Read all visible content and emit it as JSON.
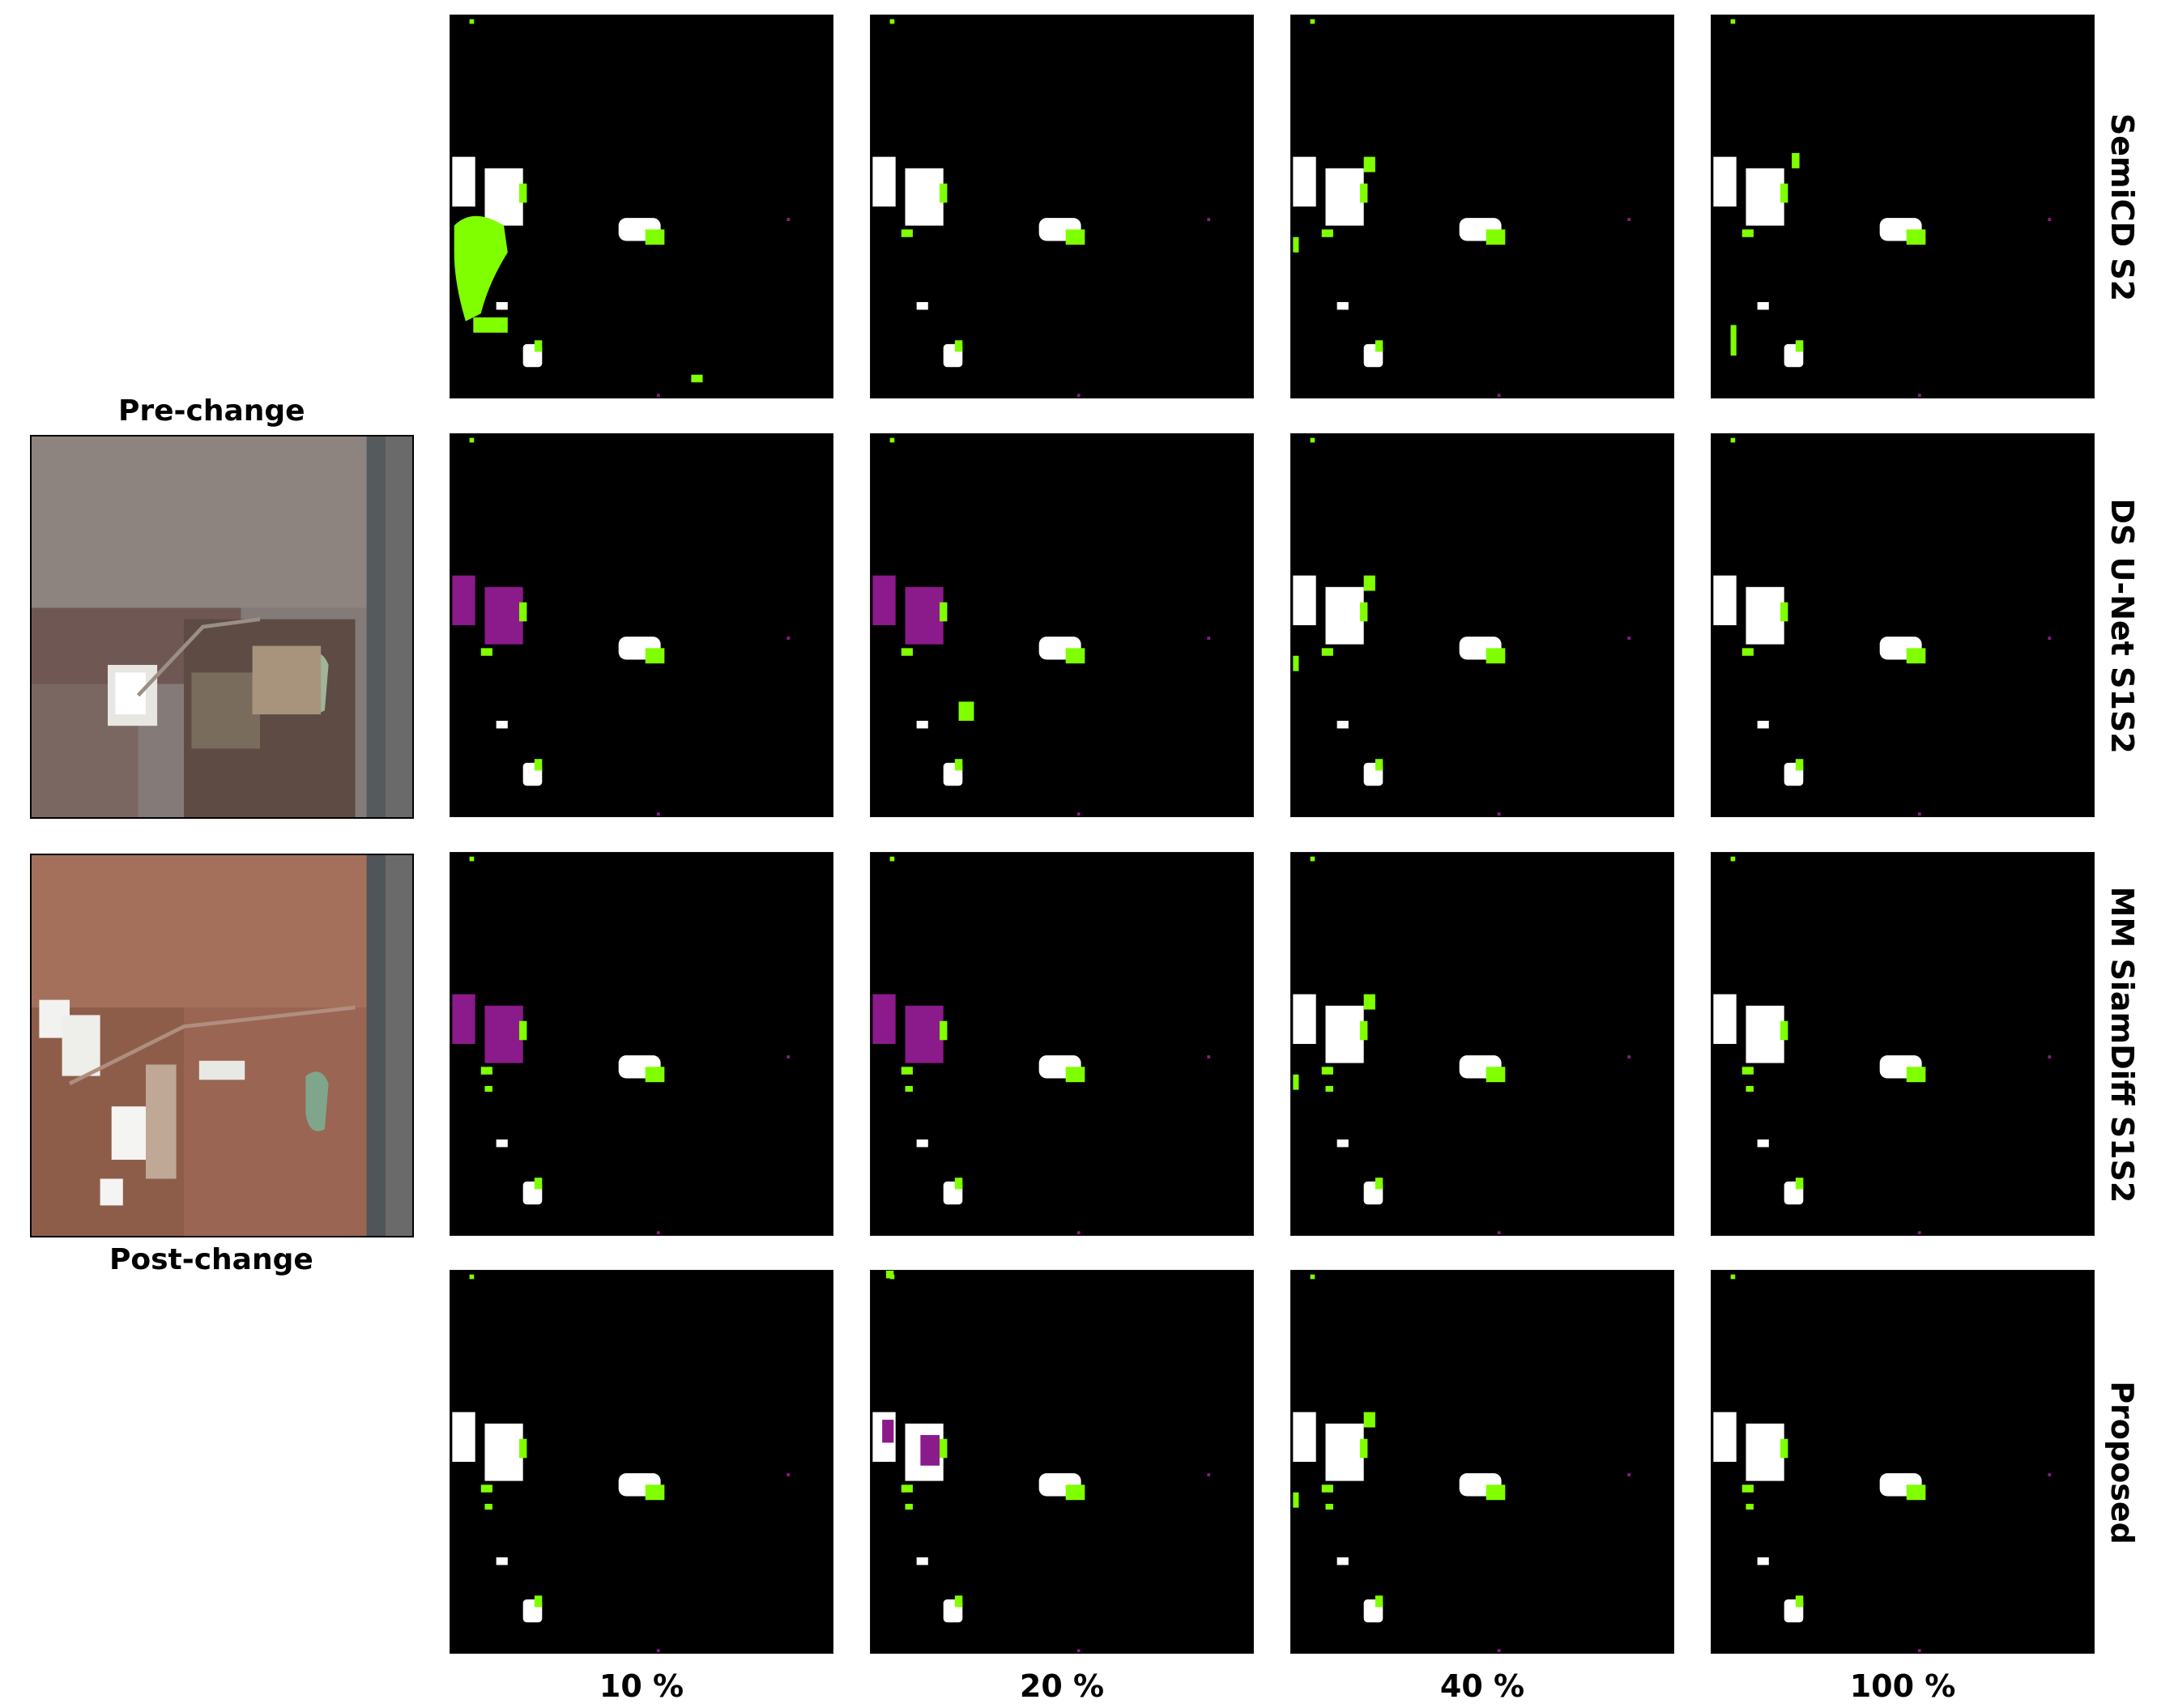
{
  "images": {
    "pre_change_label": "Pre-change",
    "post_change_label": "Post-change"
  },
  "row_labels": [
    "SemiCD S2",
    "DS U-Net S1S2",
    "MM SiamDiff S1S2",
    "Proposed"
  ],
  "col_labels": [
    "10 %",
    "20 %",
    "40 %",
    "100 %"
  ],
  "colors": {
    "true_positive": "#ffffff",
    "false_positive": "#80ff00",
    "false_negative": "#8b1a8b",
    "background": "#000000"
  }
}
